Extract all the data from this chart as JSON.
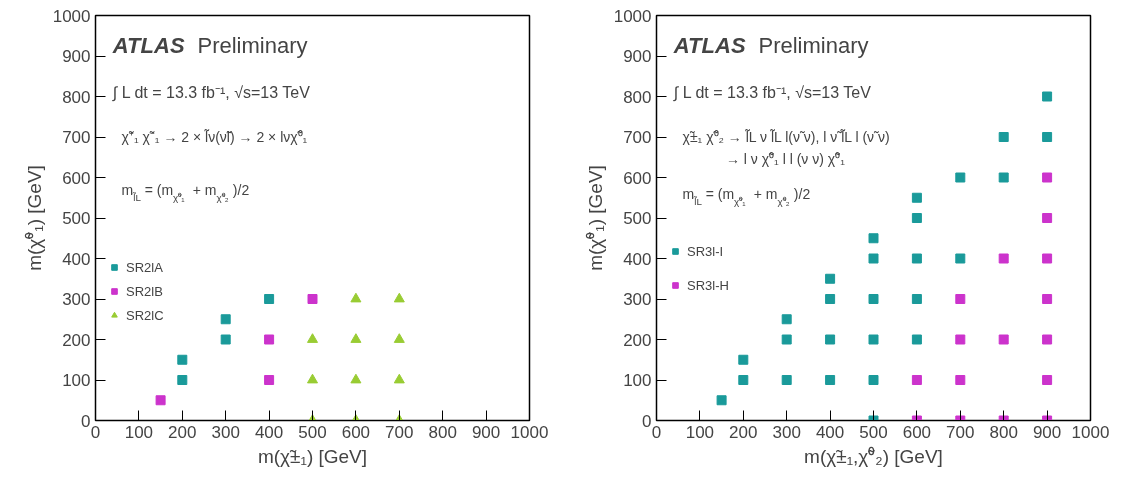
{
  "chart_data": [
    {
      "type": "scatter",
      "title": "ATLAS",
      "subtitle": "Preliminary",
      "xlabel": "m(χ̃±₁) [GeV]",
      "ylabel": "m(χ̃⁰₁) [GeV]",
      "annotations": [
        "∫ L dt = 13.3 fb⁻¹, √s=13 TeV",
        "χ̃⁺₁ χ̃⁻₁ → 2 × l̃ν(ν̃l) → 2 × lνχ̃⁰₁",
        "m$_{l̃L}$ = (m$_{χ̃⁰₁}$ + m$_{χ̃⁰₂}$)/2"
      ],
      "xlim": [
        0,
        1000
      ],
      "ylim": [
        0,
        1000
      ],
      "xticks": [
        0,
        100,
        200,
        300,
        400,
        500,
        600,
        700,
        800,
        900,
        1000
      ],
      "yticks": [
        0,
        100,
        200,
        300,
        400,
        500,
        600,
        700,
        800,
        900,
        1000
      ],
      "legend": "left",
      "series": [
        {
          "name": "SR2lA",
          "color": "#1a9a9a",
          "marker": "square",
          "x": [
            200,
            200,
            300,
            300,
            400
          ],
          "values": [
            100,
            150,
            200,
            250,
            300
          ]
        },
        {
          "name": "SR2lB",
          "color": "#cc33cc",
          "marker": "square",
          "x": [
            150,
            400,
            400,
            500
          ],
          "values": [
            50,
            100,
            200,
            300
          ]
        },
        {
          "name": "SR2lC",
          "color": "#99cc33",
          "marker": "triangle",
          "x": [
            500,
            500,
            500,
            600,
            600,
            600,
            600,
            700,
            700,
            700,
            700
          ],
          "values": [
            0,
            100,
            200,
            0,
            100,
            200,
            300,
            0,
            100,
            200,
            300
          ]
        }
      ]
    },
    {
      "type": "scatter",
      "title": "ATLAS",
      "subtitle": "Preliminary",
      "xlabel": "m(χ̃±₁,χ̃⁰₂) [GeV]",
      "ylabel": "m(χ̃⁰₁) [GeV]",
      "annotations": [
        "∫ L dt = 13.3 fb⁻¹, √s=13 TeV",
        "χ̃±₁ χ̃⁰₂ → l̃L ν l̃L l(ν̃ ν), l ν̃ l̃L l (ν̃ ν)",
        "→ l ν χ̃⁰₁ l l (ν ν) χ̃⁰₁",
        "m$_{l̃L}$ = (m$_{χ̃⁰₁}$ + m$_{χ̃⁰₂}$)/2"
      ],
      "xlim": [
        0,
        1000
      ],
      "ylim": [
        0,
        1000
      ],
      "xticks": [
        0,
        100,
        200,
        300,
        400,
        500,
        600,
        700,
        800,
        900,
        1000
      ],
      "yticks": [
        0,
        100,
        200,
        300,
        400,
        500,
        600,
        700,
        800,
        900,
        1000
      ],
      "legend": "left",
      "series": [
        {
          "name": "SR3l-I",
          "color": "#1a9a9a",
          "marker": "square",
          "x": [
            150,
            200,
            200,
            300,
            300,
            300,
            400,
            400,
            400,
            400,
            500,
            500,
            500,
            500,
            500,
            500,
            600,
            600,
            600,
            600,
            600,
            700,
            700,
            800,
            800,
            900,
            900
          ],
          "values": [
            50,
            100,
            150,
            100,
            200,
            250,
            100,
            200,
            300,
            350,
            0,
            100,
            200,
            300,
            400,
            450,
            200,
            300,
            400,
            500,
            550,
            400,
            600,
            600,
            700,
            700,
            800
          ]
        },
        {
          "name": "SR3l-H",
          "color": "#cc33cc",
          "marker": "square",
          "x": [
            600,
            600,
            700,
            700,
            700,
            700,
            800,
            800,
            800,
            900,
            900,
            900,
            900,
            900,
            900,
            900
          ],
          "values": [
            0,
            100,
            0,
            100,
            200,
            300,
            0,
            200,
            400,
            0,
            100,
            200,
            300,
            400,
            500,
            600
          ]
        }
      ]
    }
  ]
}
